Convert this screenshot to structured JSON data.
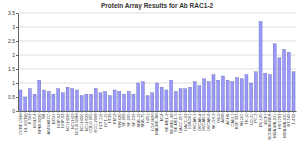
{
  "chart_data": {
    "type": "bar",
    "title": "Protein Array Results for Ab RAC1-2",
    "categories": [
      "CCRF-CEM",
      "HL-60(TB)",
      "K-562",
      "MOLT-4",
      "RPMI-8226",
      "SR",
      "A549/ATCC",
      "EKVX",
      "HOP-62",
      "HOP-92",
      "NCI-H226",
      "NCI-H23",
      "NCI-H322M",
      "NCI-H460",
      "NCI-H522",
      "COLO 205",
      "HCC-2998",
      "HCT-116",
      "HCT-15",
      "HT29",
      "KM12",
      "SW-620",
      "SF-268",
      "SF-295",
      "SF-539",
      "SNB-19",
      "SNB-75",
      "U251",
      "LOX IMVI",
      "MALME-3M",
      "M14",
      "SK-MEL-2",
      "SK-MEL-28",
      "SK-MEL-5",
      "UACC-257",
      "UACC-62",
      "IGROV1",
      "OVCAR-3",
      "OVCAR-4",
      "OVCAR-5",
      "OVCAR-8",
      "SK-OV-3",
      "786-0",
      "A498",
      "ACHN",
      "CAKI-1",
      "RXF 393",
      "SN12C",
      "TK-10",
      "UO-31",
      "PC-3",
      "DU-145",
      "MCF7",
      "NCI/ADR-RES",
      "MDA-MB-231",
      "HS 578T",
      "MDA-MB-435",
      "BT-549",
      "T-47D"
    ],
    "values": [
      0.75,
      0.5,
      0.8,
      0.6,
      1.1,
      0.75,
      0.7,
      0.6,
      0.8,
      0.65,
      0.85,
      0.8,
      0.75,
      0.55,
      0.6,
      0.6,
      0.8,
      0.65,
      0.7,
      0.55,
      0.75,
      0.7,
      0.6,
      0.7,
      0.6,
      1.0,
      1.05,
      0.55,
      0.65,
      1.0,
      0.85,
      0.75,
      1.1,
      0.7,
      0.8,
      0.8,
      0.85,
      1.05,
      0.9,
      1.15,
      1.05,
      1.3,
      1.1,
      1.25,
      1.1,
      1.05,
      1.2,
      1.15,
      1.3,
      1.0,
      1.4,
      3.2,
      1.35,
      1.3,
      2.4,
      1.9,
      2.2,
      2.1,
      1.4
    ],
    "color": "#9999ff",
    "ylim": [
      0,
      3.5
    ],
    "yticks": [
      0,
      0.5,
      1,
      1.5,
      2,
      2.5,
      3,
      3.5
    ],
    "grid": true
  }
}
